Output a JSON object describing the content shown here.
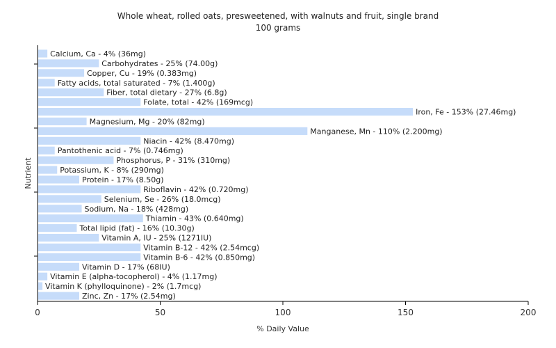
{
  "chart_data": {
    "type": "bar",
    "orientation": "horizontal",
    "title": "Whole wheat, rolled oats, presweetened, with walnuts and fruit, single brand",
    "subtitle": "100 grams",
    "xlabel": "% Daily Value",
    "ylabel": "Nutrient",
    "xlim": [
      0,
      200
    ],
    "xticks": [
      0,
      50,
      100,
      150,
      200
    ],
    "grid": false,
    "bar_color": "#c6dcfa",
    "bars": [
      {
        "value": 4,
        "label": "Calcium, Ca - 4% (36mg)"
      },
      {
        "value": 25,
        "label": "Carbohydrates - 25% (74.00g)"
      },
      {
        "value": 19,
        "label": "Copper, Cu - 19% (0.383mg)"
      },
      {
        "value": 7,
        "label": "Fatty acids, total saturated - 7% (1.400g)"
      },
      {
        "value": 27,
        "label": "Fiber, total dietary - 27% (6.8g)"
      },
      {
        "value": 42,
        "label": "Folate, total - 42% (169mcg)"
      },
      {
        "value": 153,
        "label": "Iron, Fe - 153% (27.46mg)"
      },
      {
        "value": 20,
        "label": "Magnesium, Mg - 20% (82mg)"
      },
      {
        "value": 110,
        "label": "Manganese, Mn - 110% (2.200mg)"
      },
      {
        "value": 42,
        "label": "Niacin - 42% (8.470mg)"
      },
      {
        "value": 7,
        "label": "Pantothenic acid - 7% (0.746mg)"
      },
      {
        "value": 31,
        "label": "Phosphorus, P - 31% (310mg)"
      },
      {
        "value": 8,
        "label": "Potassium, K - 8% (290mg)"
      },
      {
        "value": 17,
        "label": "Protein - 17% (8.50g)"
      },
      {
        "value": 42,
        "label": "Riboflavin - 42% (0.720mg)"
      },
      {
        "value": 26,
        "label": "Selenium, Se - 26% (18.0mcg)"
      },
      {
        "value": 18,
        "label": "Sodium, Na - 18% (428mg)"
      },
      {
        "value": 43,
        "label": "Thiamin - 43% (0.640mg)"
      },
      {
        "value": 16,
        "label": "Total lipid (fat) - 16% (10.30g)"
      },
      {
        "value": 25,
        "label": "Vitamin A, IU - 25% (1271IU)"
      },
      {
        "value": 42,
        "label": "Vitamin B-12 - 42% (2.54mcg)"
      },
      {
        "value": 42,
        "label": "Vitamin B-6 - 42% (0.850mg)"
      },
      {
        "value": 17,
        "label": "Vitamin D - 17% (68IU)"
      },
      {
        "value": 4,
        "label": "Vitamin E (alpha-tocopherol) - 4% (1.17mg)"
      },
      {
        "value": 2,
        "label": "Vitamin K (phylloquinone) - 2% (1.7mcg)"
      },
      {
        "value": 17,
        "label": "Zinc, Zn - 17% (2.54mg)"
      }
    ]
  }
}
